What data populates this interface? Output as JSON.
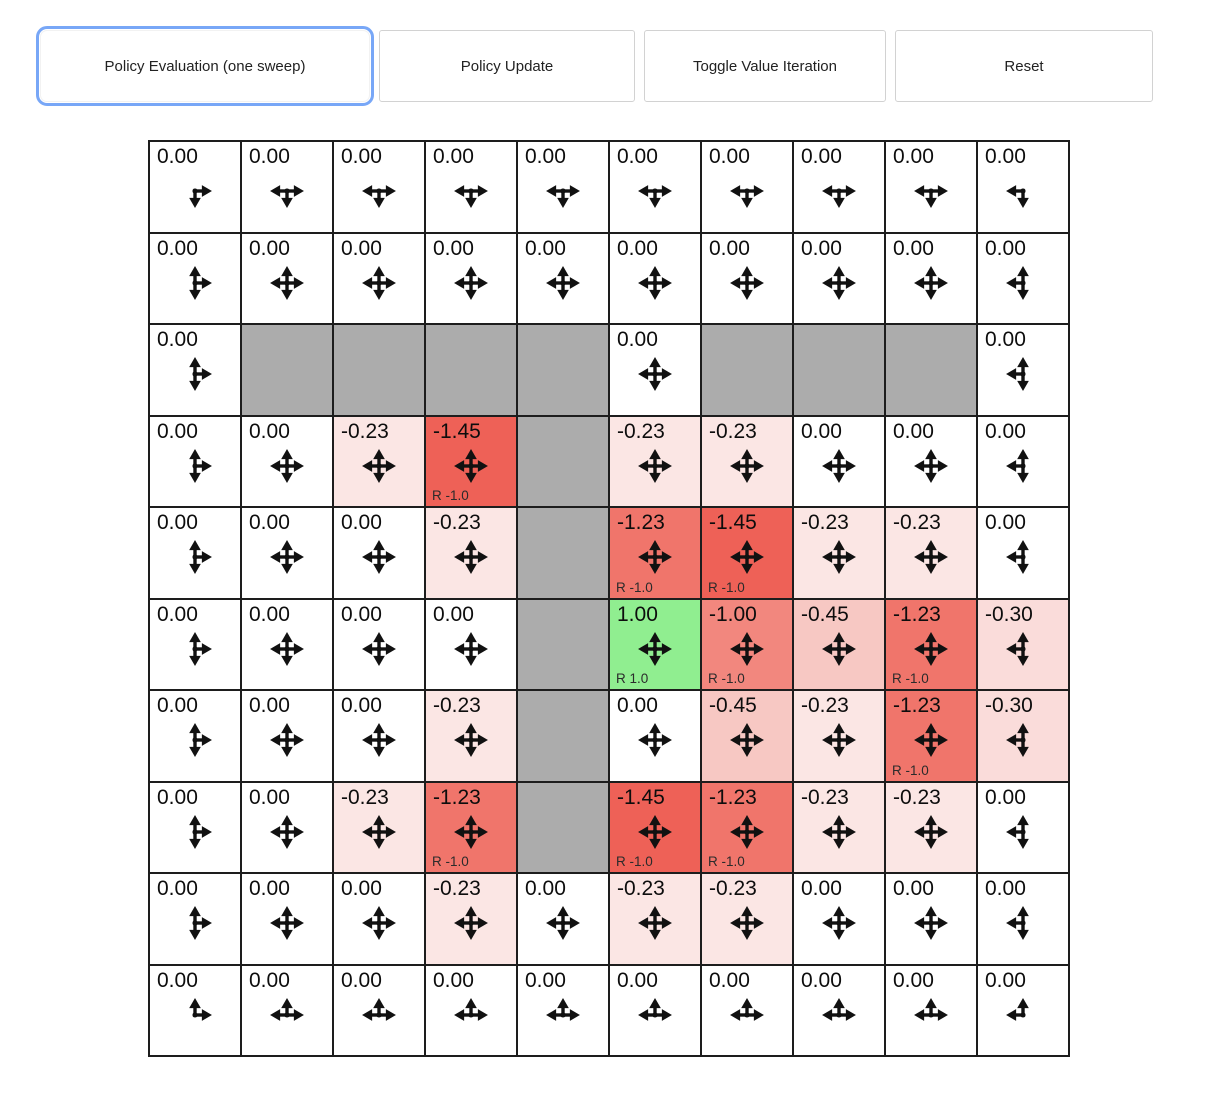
{
  "toolbar": {
    "buttons": [
      {
        "label": "Policy Evaluation (one sweep)",
        "active": true
      },
      {
        "label": "Policy Update",
        "active": false
      },
      {
        "label": "Toggle Value Iteration",
        "active": false
      },
      {
        "label": "Reset",
        "active": false
      }
    ],
    "active_outline_color": "#78a7f7"
  },
  "grid": {
    "rows": 10,
    "cols": 10,
    "palette": {
      "white": "#ffffff",
      "p23": "#fbe6e4",
      "p30": "#fadcda",
      "p45": "#f7c8c3",
      "r100": "#f2877e",
      "r123": "#f0756b",
      "r145": "#ee6157",
      "goal": "#90ee90",
      "wall": "#acacac"
    },
    "arrow_color": "#111111",
    "cells": [
      [
        {
          "v": "0.00",
          "bg": "white",
          "a": [
            "d",
            "r"
          ]
        },
        {
          "v": "0.00",
          "bg": "white",
          "a": [
            "l",
            "r",
            "d"
          ]
        },
        {
          "v": "0.00",
          "bg": "white",
          "a": [
            "l",
            "r",
            "d"
          ]
        },
        {
          "v": "0.00",
          "bg": "white",
          "a": [
            "l",
            "r",
            "d"
          ]
        },
        {
          "v": "0.00",
          "bg": "white",
          "a": [
            "l",
            "r",
            "d"
          ]
        },
        {
          "v": "0.00",
          "bg": "white",
          "a": [
            "l",
            "r",
            "d"
          ]
        },
        {
          "v": "0.00",
          "bg": "white",
          "a": [
            "l",
            "r",
            "d"
          ]
        },
        {
          "v": "0.00",
          "bg": "white",
          "a": [
            "l",
            "r",
            "d"
          ]
        },
        {
          "v": "0.00",
          "bg": "white",
          "a": [
            "l",
            "r",
            "d"
          ]
        },
        {
          "v": "0.00",
          "bg": "white",
          "a": [
            "d",
            "l"
          ]
        }
      ],
      [
        {
          "v": "0.00",
          "bg": "white",
          "a": [
            "u",
            "d",
            "r"
          ]
        },
        {
          "v": "0.00",
          "bg": "white",
          "a": [
            "u",
            "d",
            "l",
            "r"
          ]
        },
        {
          "v": "0.00",
          "bg": "white",
          "a": [
            "u",
            "d",
            "l",
            "r"
          ]
        },
        {
          "v": "0.00",
          "bg": "white",
          "a": [
            "u",
            "d",
            "l",
            "r"
          ]
        },
        {
          "v": "0.00",
          "bg": "white",
          "a": [
            "u",
            "d",
            "l",
            "r"
          ]
        },
        {
          "v": "0.00",
          "bg": "white",
          "a": [
            "u",
            "d",
            "l",
            "r"
          ]
        },
        {
          "v": "0.00",
          "bg": "white",
          "a": [
            "u",
            "d",
            "l",
            "r"
          ]
        },
        {
          "v": "0.00",
          "bg": "white",
          "a": [
            "u",
            "d",
            "l",
            "r"
          ]
        },
        {
          "v": "0.00",
          "bg": "white",
          "a": [
            "u",
            "d",
            "l",
            "r"
          ]
        },
        {
          "v": "0.00",
          "bg": "white",
          "a": [
            "u",
            "d",
            "l"
          ]
        }
      ],
      [
        {
          "v": "0.00",
          "bg": "white",
          "a": [
            "u",
            "d",
            "r"
          ]
        },
        {
          "wall": true,
          "bg": "wall"
        },
        {
          "wall": true,
          "bg": "wall"
        },
        {
          "wall": true,
          "bg": "wall"
        },
        {
          "wall": true,
          "bg": "wall"
        },
        {
          "v": "0.00",
          "bg": "white",
          "a": [
            "u",
            "d",
            "l",
            "r"
          ]
        },
        {
          "wall": true,
          "bg": "wall"
        },
        {
          "wall": true,
          "bg": "wall"
        },
        {
          "wall": true,
          "bg": "wall"
        },
        {
          "v": "0.00",
          "bg": "white",
          "a": [
            "u",
            "d",
            "l"
          ]
        }
      ],
      [
        {
          "v": "0.00",
          "bg": "white",
          "a": [
            "u",
            "d",
            "r"
          ]
        },
        {
          "v": "0.00",
          "bg": "white",
          "a": [
            "u",
            "d",
            "l",
            "r"
          ]
        },
        {
          "v": "-0.23",
          "bg": "p23",
          "a": [
            "u",
            "d",
            "l",
            "r"
          ]
        },
        {
          "v": "-1.45",
          "bg": "r145",
          "a": [
            "u",
            "d",
            "l",
            "r"
          ],
          "r": "R -1.0"
        },
        {
          "wall": true,
          "bg": "wall"
        },
        {
          "v": "-0.23",
          "bg": "p23",
          "a": [
            "u",
            "d",
            "l",
            "r"
          ]
        },
        {
          "v": "-0.23",
          "bg": "p23",
          "a": [
            "u",
            "d",
            "l",
            "r"
          ]
        },
        {
          "v": "0.00",
          "bg": "white",
          "a": [
            "u",
            "d",
            "l",
            "r"
          ]
        },
        {
          "v": "0.00",
          "bg": "white",
          "a": [
            "u",
            "d",
            "l",
            "r"
          ]
        },
        {
          "v": "0.00",
          "bg": "white",
          "a": [
            "u",
            "d",
            "l"
          ]
        }
      ],
      [
        {
          "v": "0.00",
          "bg": "white",
          "a": [
            "u",
            "d",
            "r"
          ]
        },
        {
          "v": "0.00",
          "bg": "white",
          "a": [
            "u",
            "d",
            "l",
            "r"
          ]
        },
        {
          "v": "0.00",
          "bg": "white",
          "a": [
            "u",
            "d",
            "l",
            "r"
          ]
        },
        {
          "v": "-0.23",
          "bg": "p23",
          "a": [
            "u",
            "d",
            "l",
            "r"
          ]
        },
        {
          "wall": true,
          "bg": "wall"
        },
        {
          "v": "-1.23",
          "bg": "r123",
          "a": [
            "u",
            "d",
            "l",
            "r"
          ],
          "r": "R -1.0"
        },
        {
          "v": "-1.45",
          "bg": "r145",
          "a": [
            "u",
            "d",
            "l",
            "r"
          ],
          "r": "R -1.0"
        },
        {
          "v": "-0.23",
          "bg": "p23",
          "a": [
            "u",
            "d",
            "l",
            "r"
          ]
        },
        {
          "v": "-0.23",
          "bg": "p23",
          "a": [
            "u",
            "d",
            "l",
            "r"
          ]
        },
        {
          "v": "0.00",
          "bg": "white",
          "a": [
            "u",
            "d",
            "l"
          ]
        }
      ],
      [
        {
          "v": "0.00",
          "bg": "white",
          "a": [
            "u",
            "d",
            "r"
          ]
        },
        {
          "v": "0.00",
          "bg": "white",
          "a": [
            "u",
            "d",
            "l",
            "r"
          ]
        },
        {
          "v": "0.00",
          "bg": "white",
          "a": [
            "u",
            "d",
            "l",
            "r"
          ]
        },
        {
          "v": "0.00",
          "bg": "white",
          "a": [
            "u",
            "d",
            "l",
            "r"
          ]
        },
        {
          "wall": true,
          "bg": "wall"
        },
        {
          "v": "1.00",
          "bg": "goal",
          "a": [
            "u",
            "d",
            "l",
            "r"
          ],
          "r": "R 1.0"
        },
        {
          "v": "-1.00",
          "bg": "r100",
          "a": [
            "u",
            "d",
            "l",
            "r"
          ],
          "r": "R -1.0"
        },
        {
          "v": "-0.45",
          "bg": "p45",
          "a": [
            "u",
            "d",
            "l",
            "r"
          ]
        },
        {
          "v": "-1.23",
          "bg": "r123",
          "a": [
            "u",
            "d",
            "l",
            "r"
          ],
          "r": "R -1.0"
        },
        {
          "v": "-0.30",
          "bg": "p30",
          "a": [
            "u",
            "d",
            "l"
          ]
        }
      ],
      [
        {
          "v": "0.00",
          "bg": "white",
          "a": [
            "u",
            "d",
            "r"
          ]
        },
        {
          "v": "0.00",
          "bg": "white",
          "a": [
            "u",
            "d",
            "l",
            "r"
          ]
        },
        {
          "v": "0.00",
          "bg": "white",
          "a": [
            "u",
            "d",
            "l",
            "r"
          ]
        },
        {
          "v": "-0.23",
          "bg": "p23",
          "a": [
            "u",
            "d",
            "l",
            "r"
          ]
        },
        {
          "wall": true,
          "bg": "wall"
        },
        {
          "v": "0.00",
          "bg": "white",
          "a": [
            "u",
            "d",
            "l",
            "r"
          ]
        },
        {
          "v": "-0.45",
          "bg": "p45",
          "a": [
            "u",
            "d",
            "l",
            "r"
          ]
        },
        {
          "v": "-0.23",
          "bg": "p23",
          "a": [
            "u",
            "d",
            "l",
            "r"
          ]
        },
        {
          "v": "-1.23",
          "bg": "r123",
          "a": [
            "u",
            "d",
            "l",
            "r"
          ],
          "r": "R -1.0"
        },
        {
          "v": "-0.30",
          "bg": "p30",
          "a": [
            "u",
            "d",
            "l"
          ]
        }
      ],
      [
        {
          "v": "0.00",
          "bg": "white",
          "a": [
            "u",
            "d",
            "r"
          ]
        },
        {
          "v": "0.00",
          "bg": "white",
          "a": [
            "u",
            "d",
            "l",
            "r"
          ]
        },
        {
          "v": "-0.23",
          "bg": "p23",
          "a": [
            "u",
            "d",
            "l",
            "r"
          ]
        },
        {
          "v": "-1.23",
          "bg": "r123",
          "a": [
            "u",
            "d",
            "l",
            "r"
          ],
          "r": "R -1.0"
        },
        {
          "wall": true,
          "bg": "wall"
        },
        {
          "v": "-1.45",
          "bg": "r145",
          "a": [
            "u",
            "d",
            "l",
            "r"
          ],
          "r": "R -1.0"
        },
        {
          "v": "-1.23",
          "bg": "r123",
          "a": [
            "u",
            "d",
            "l",
            "r"
          ],
          "r": "R -1.0"
        },
        {
          "v": "-0.23",
          "bg": "p23",
          "a": [
            "u",
            "d",
            "l",
            "r"
          ]
        },
        {
          "v": "-0.23",
          "bg": "p23",
          "a": [
            "u",
            "d",
            "l",
            "r"
          ]
        },
        {
          "v": "0.00",
          "bg": "white",
          "a": [
            "u",
            "d",
            "l"
          ]
        }
      ],
      [
        {
          "v": "0.00",
          "bg": "white",
          "a": [
            "u",
            "d",
            "r"
          ]
        },
        {
          "v": "0.00",
          "bg": "white",
          "a": [
            "u",
            "d",
            "l",
            "r"
          ]
        },
        {
          "v": "0.00",
          "bg": "white",
          "a": [
            "u",
            "d",
            "l",
            "r"
          ]
        },
        {
          "v": "-0.23",
          "bg": "p23",
          "a": [
            "u",
            "d",
            "l",
            "r"
          ]
        },
        {
          "v": "0.00",
          "bg": "white",
          "a": [
            "u",
            "d",
            "l",
            "r"
          ]
        },
        {
          "v": "-0.23",
          "bg": "p23",
          "a": [
            "u",
            "d",
            "l",
            "r"
          ]
        },
        {
          "v": "-0.23",
          "bg": "p23",
          "a": [
            "u",
            "d",
            "l",
            "r"
          ]
        },
        {
          "v": "0.00",
          "bg": "white",
          "a": [
            "u",
            "d",
            "l",
            "r"
          ]
        },
        {
          "v": "0.00",
          "bg": "white",
          "a": [
            "u",
            "d",
            "l",
            "r"
          ]
        },
        {
          "v": "0.00",
          "bg": "white",
          "a": [
            "u",
            "d",
            "l"
          ]
        }
      ],
      [
        {
          "v": "0.00",
          "bg": "white",
          "a": [
            "u",
            "r"
          ]
        },
        {
          "v": "0.00",
          "bg": "white",
          "a": [
            "l",
            "r",
            "u"
          ]
        },
        {
          "v": "0.00",
          "bg": "white",
          "a": [
            "l",
            "r",
            "u"
          ]
        },
        {
          "v": "0.00",
          "bg": "white",
          "a": [
            "l",
            "r",
            "u"
          ]
        },
        {
          "v": "0.00",
          "bg": "white",
          "a": [
            "l",
            "r",
            "u"
          ]
        },
        {
          "v": "0.00",
          "bg": "white",
          "a": [
            "l",
            "r",
            "u"
          ]
        },
        {
          "v": "0.00",
          "bg": "white",
          "a": [
            "l",
            "r",
            "u"
          ]
        },
        {
          "v": "0.00",
          "bg": "white",
          "a": [
            "l",
            "r",
            "u"
          ]
        },
        {
          "v": "0.00",
          "bg": "white",
          "a": [
            "l",
            "r",
            "u"
          ]
        },
        {
          "v": "0.00",
          "bg": "white",
          "a": [
            "u",
            "l"
          ]
        }
      ]
    ]
  }
}
